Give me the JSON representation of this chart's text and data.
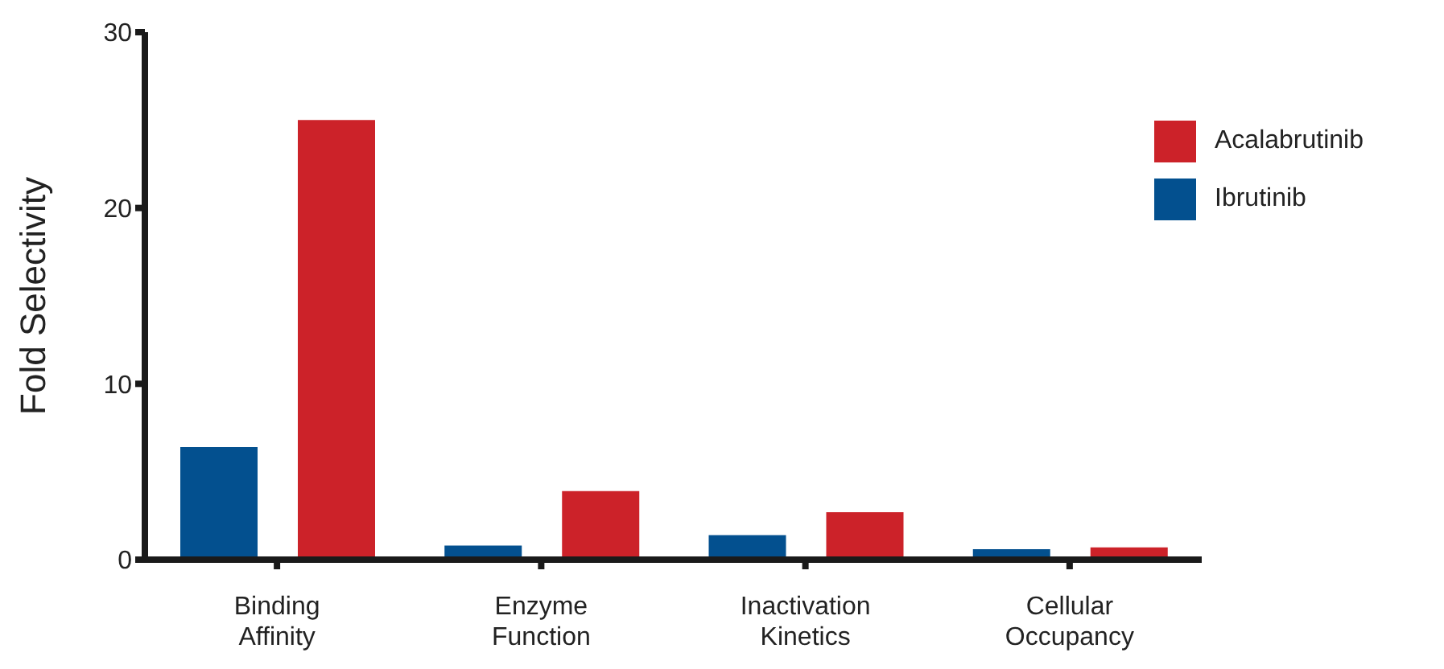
{
  "chart_data": {
    "type": "bar",
    "ylabel": "Fold Selectivity",
    "categories": [
      "Binding\nAffinity",
      "Enzyme\nFunction",
      "Inactivation\nKinetics",
      "Cellular\nOccupancy"
    ],
    "series": [
      {
        "name": "Ibrutinib",
        "color": "#03508f",
        "values": [
          6.4,
          0.8,
          1.4,
          0.6
        ]
      },
      {
        "name": "Acalabrutinib",
        "color": "#cc2229",
        "values": [
          25,
          3.9,
          2.7,
          0.7
        ]
      }
    ],
    "ylim": [
      0,
      30
    ],
    "yticks": [
      0,
      10,
      20,
      30
    ],
    "grid": false,
    "legend": "top right"
  }
}
